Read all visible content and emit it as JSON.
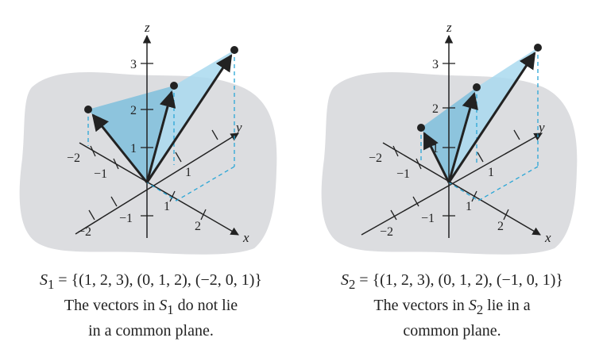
{
  "panels": [
    {
      "id": "left",
      "set_lhs": "S",
      "set_sub": "1",
      "set_rhs": " = {(1, 2, 3), (0, 1, 2), (−2, 0, 1)}",
      "desc_pre": "The vectors in ",
      "desc_S": "S",
      "desc_sub": "1",
      "desc_post": " do not lie",
      "desc_line2": "in a common plane.",
      "vectors": [
        [
          1,
          2,
          3
        ],
        [
          0,
          1,
          2
        ],
        [
          -2,
          0,
          1
        ]
      ],
      "ticks": {
        "z": [
          "1",
          "2",
          "3"
        ],
        "x": [
          "1",
          "2"
        ],
        "y_neg": [
          "−1",
          "−2"
        ],
        "x_neg": [
          "−1",
          "−2"
        ],
        "y_pos": [
          "1"
        ]
      }
    },
    {
      "id": "right",
      "set_lhs": "S",
      "set_sub": "2",
      "set_rhs": " = {(1, 2, 3), (0, 1, 2), (−1, 0, 1)}",
      "desc_pre": "The vectors in ",
      "desc_S": "S",
      "desc_sub": "2",
      "desc_post": " lie in a",
      "desc_line2": "common plane.",
      "vectors": [
        [
          1,
          2,
          3
        ],
        [
          0,
          1,
          2
        ],
        [
          -1,
          0,
          1
        ]
      ],
      "ticks": {
        "z": [
          "1",
          "2",
          "3"
        ],
        "x": [
          "1",
          "2"
        ],
        "y_neg": [
          "−1",
          "−2"
        ],
        "x_neg": [
          "−1",
          "−2"
        ],
        "y_pos": [
          "1"
        ]
      }
    }
  ],
  "axis_labels": {
    "x": "x",
    "y": "y",
    "z": "z"
  },
  "colors": {
    "background_blob": "#dcdde0",
    "plane_fill": "#a9d9ef",
    "plane_fill_dark": "#7fbfdc",
    "guide": "#2aa6d6",
    "ink": "#222222"
  }
}
